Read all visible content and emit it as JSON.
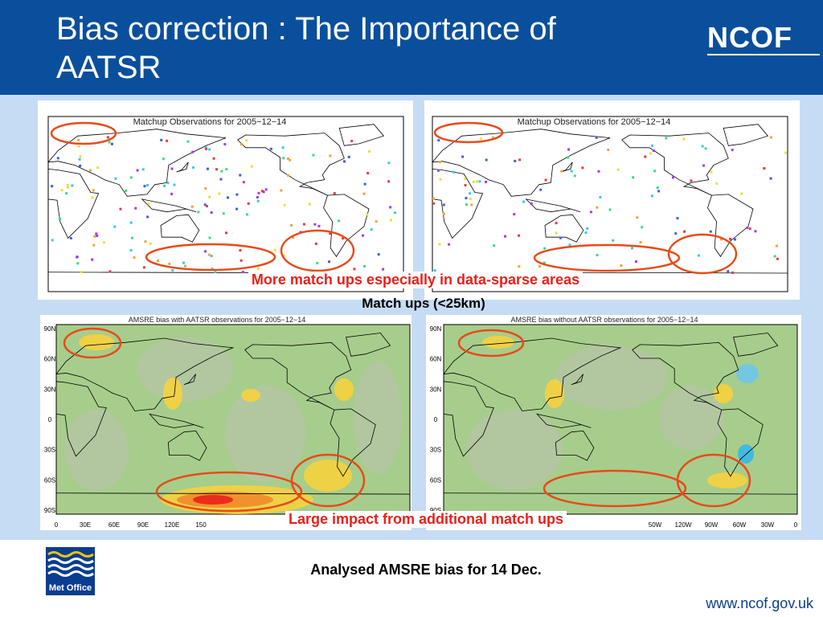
{
  "header": {
    "title": "Bias correction : The Importance of AATSR",
    "logo": "NCOF"
  },
  "maps": [
    {
      "title": "Matchup Observations for 2005−12−14"
    },
    {
      "title": "Matchup Observations for 2005−12−14"
    },
    {
      "title": "AMSRE bias with AATSR observations for 2005−12−14",
      "lat_labels": [
        "90N",
        "60N",
        "30N",
        "0",
        "30S",
        "60S",
        "90S"
      ],
      "lon_labels": [
        "0",
        "30E",
        "60E",
        "90E",
        "120E",
        "150"
      ]
    },
    {
      "title": "AMSRE bias without AATSR observations for 2005−12−14",
      "lat_labels": [
        "90N",
        "60N",
        "30N",
        "0",
        "30S",
        "60S",
        "90S"
      ],
      "lon_labels": [
        "50W",
        "120W",
        "90W",
        "60W",
        "30W",
        "0"
      ]
    }
  ],
  "annotations": {
    "top": "More match ups especially in data-sparse areas",
    "middle": "Match ups (<25km)",
    "bottom": "Large impact from additional match ups"
  },
  "caption": "Analysed AMSRE bias for 14 Dec.",
  "footer": {
    "logo": "Met Office",
    "url": "www.ncof.gov.uk"
  }
}
